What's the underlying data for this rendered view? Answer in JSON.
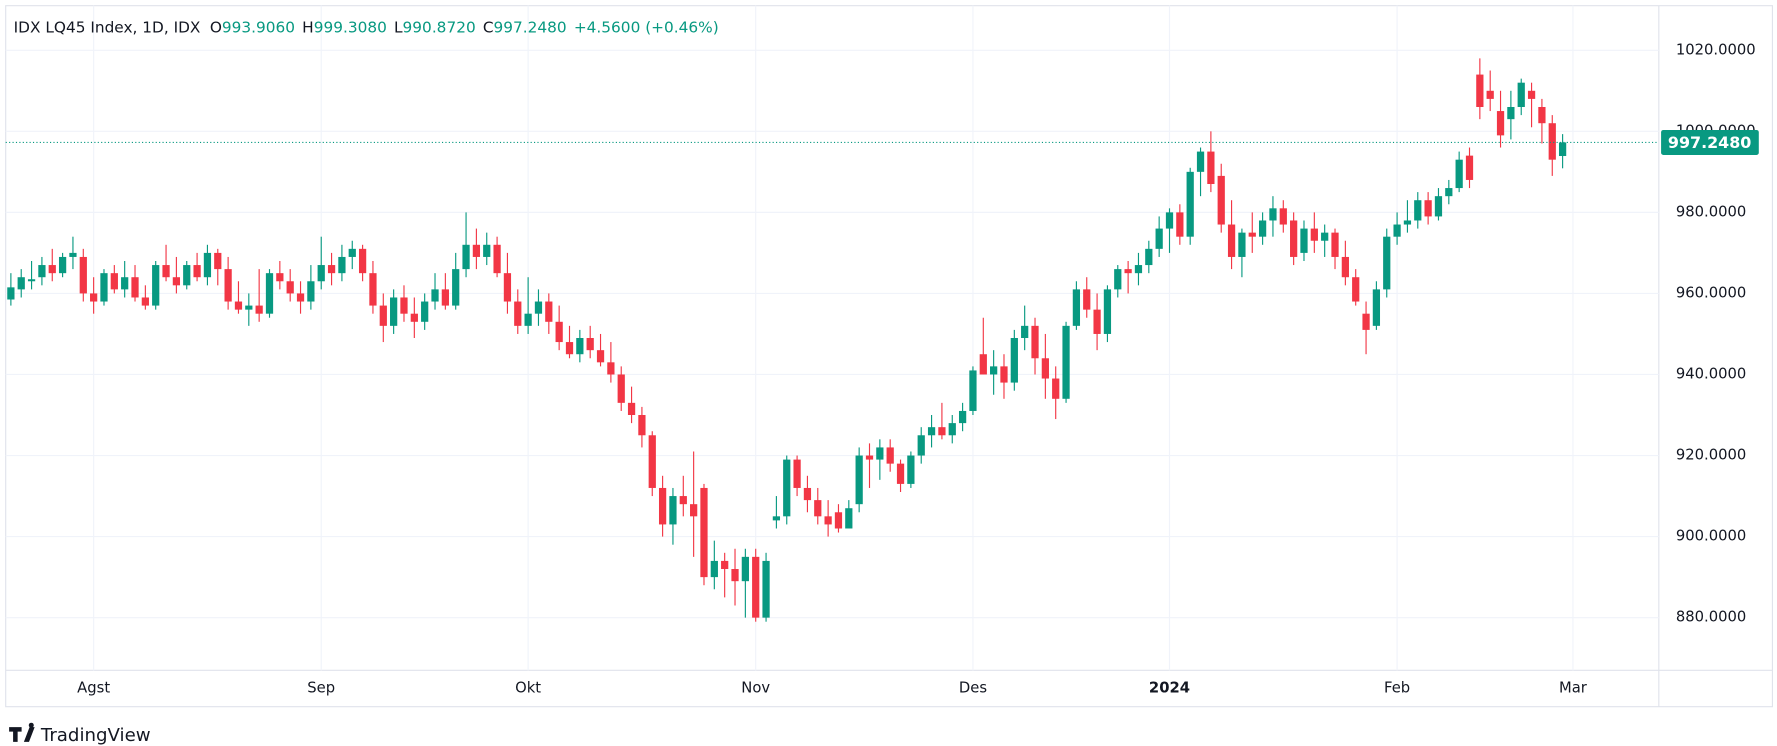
{
  "chart_data": {
    "type": "candlestick",
    "title": "IDX LQ45 Index, 1D, IDX",
    "legend": [
      {
        "label": "O",
        "value": "993.9060"
      },
      {
        "label": "H",
        "value": "999.3080"
      },
      {
        "label": "L",
        "value": "990.8720"
      },
      {
        "label": "C",
        "value": "997.2480"
      }
    ],
    "change": "+4.5600 (+0.46%)",
    "last_price_label": "997.2480",
    "up_color": "#089981",
    "down_color": "#f23645",
    "grid": true,
    "xlim": [
      -0.5,
      159.3
    ],
    "xticks": [
      {
        "value": 8,
        "label": "Agst"
      },
      {
        "value": 30,
        "label": "Sep"
      },
      {
        "value": 50,
        "label": "Okt"
      },
      {
        "value": 72,
        "label": "Nov"
      },
      {
        "value": 93,
        "label": "Des"
      },
      {
        "value": 112,
        "label": "2024"
      },
      {
        "value": 134,
        "label": "Feb"
      },
      {
        "value": 151,
        "label": "Mar"
      }
    ],
    "ylim": [
      867,
      1031
    ],
    "yticks": [
      {
        "value": 880,
        "label": "880.0000"
      },
      {
        "value": 900,
        "label": "900.0000"
      },
      {
        "value": 920,
        "label": "920.0000"
      },
      {
        "value": 940,
        "label": "940.0000"
      },
      {
        "value": 960,
        "label": "960.0000"
      },
      {
        "value": 980,
        "label": "980.0000"
      },
      {
        "value": 1000,
        "label": "1000.0000"
      },
      {
        "value": 1020,
        "label": "1020.0000"
      }
    ],
    "open": [
      958.5,
      961,
      963,
      964,
      967,
      965,
      969,
      969,
      960,
      958,
      965,
      961,
      964,
      959,
      957,
      967,
      964,
      962,
      967,
      964,
      970,
      966,
      958,
      956,
      957,
      955,
      965,
      963,
      960,
      958,
      963,
      967,
      965,
      969,
      971,
      965,
      957,
      952,
      959,
      955,
      953,
      958,
      961,
      957,
      966,
      972,
      969,
      972,
      965,
      958,
      952,
      955,
      958,
      953,
      948,
      945,
      949,
      946,
      943,
      940,
      933,
      930,
      925,
      912,
      903,
      910,
      908,
      912,
      890,
      894,
      892,
      889,
      895,
      880,
      904,
      905,
      919,
      912,
      909,
      905,
      906,
      902,
      908,
      920,
      919,
      922,
      918,
      913,
      920,
      925,
      927,
      925,
      928,
      931,
      945,
      940,
      942,
      938,
      949,
      952,
      944,
      939,
      934,
      952,
      961,
      956,
      950,
      961,
      966,
      965,
      967,
      971,
      976,
      980,
      974,
      990,
      995,
      989,
      977,
      969,
      975,
      974,
      978,
      981,
      978,
      970,
      976,
      973,
      975,
      969,
      964,
      955,
      952,
      961,
      974,
      977,
      978,
      983,
      979,
      984,
      986,
      994,
      1014,
      1010,
      1005,
      1003,
      1006,
      1010,
      1006,
      1002,
      993.906
    ],
    "high": [
      965,
      966,
      968,
      969,
      971,
      970,
      974,
      971,
      964,
      966,
      967,
      968,
      967,
      962,
      968,
      972,
      969,
      968,
      970,
      972,
      971,
      969,
      963,
      960,
      966,
      966,
      968,
      966,
      963,
      967,
      974,
      970,
      972,
      973,
      972,
      968,
      960,
      961,
      962,
      959,
      960,
      965,
      965,
      970,
      980,
      976,
      975,
      974,
      970,
      961,
      964,
      961,
      960,
      957,
      952,
      951,
      952,
      950,
      948,
      942,
      937,
      932,
      926,
      915,
      912,
      915,
      921,
      913,
      899,
      896,
      897,
      897,
      897,
      896,
      910,
      920,
      920,
      915,
      912,
      909,
      908,
      909,
      922,
      923,
      924,
      924,
      919,
      921,
      927,
      930,
      933,
      930,
      933,
      942,
      954,
      946,
      945,
      951,
      957,
      954,
      950,
      942,
      953,
      963,
      964,
      960,
      962,
      967,
      968,
      970,
      973,
      979,
      981,
      982,
      991,
      996,
      1000,
      992,
      983,
      976,
      980,
      980,
      984,
      983,
      980,
      978,
      980,
      977,
      976,
      973,
      966,
      958,
      963,
      976,
      980,
      983,
      985,
      985,
      986,
      988,
      995,
      996,
      1018,
      1015,
      1010,
      1010,
      1013,
      1012,
      1008,
      1004,
      999.308
    ],
    "low": [
      957,
      959,
      961,
      962,
      963,
      964,
      966,
      958,
      955,
      957,
      960,
      959,
      958,
      956,
      956,
      963,
      960,
      961,
      963,
      962,
      962,
      956,
      955,
      952,
      953,
      954,
      961,
      958,
      955,
      956,
      961,
      962,
      963,
      966,
      963,
      955,
      948,
      950,
      953,
      949,
      951,
      956,
      956,
      956,
      964,
      966,
      967,
      964,
      955,
      950,
      950,
      952,
      950,
      946,
      944,
      943,
      944,
      942,
      938,
      931,
      928,
      922,
      910,
      900,
      898,
      905,
      895,
      888,
      887,
      885,
      883,
      880,
      879,
      879,
      902,
      903,
      910,
      906,
      903,
      900,
      901,
      902,
      906,
      912,
      914,
      916,
      911,
      912,
      918,
      922,
      924,
      923,
      926,
      930,
      940,
      935,
      934,
      936,
      946,
      940,
      934,
      929,
      933,
      951,
      954,
      946,
      948,
      959,
      960,
      962,
      965,
      969,
      970,
      972,
      972,
      984,
      985,
      975,
      966,
      964,
      970,
      972,
      974,
      975,
      967,
      968,
      970,
      969,
      966,
      962,
      957,
      945,
      951,
      959,
      972,
      975,
      976,
      977,
      978,
      982,
      985,
      986,
      1003,
      1005,
      996,
      998,
      1004,
      1001,
      997,
      989,
      990.872
    ],
    "close": [
      961.5,
      964,
      963.5,
      967,
      965,
      969,
      970,
      960,
      958,
      965,
      961,
      964,
      959,
      957,
      967,
      964,
      962,
      967,
      964,
      970,
      966,
      958,
      956,
      957,
      955,
      965,
      963,
      960,
      958,
      963,
      967,
      965,
      969,
      971,
      965,
      957,
      952,
      959,
      955,
      953,
      958,
      961,
      957,
      966,
      972,
      969,
      972,
      965,
      958,
      952,
      955,
      958,
      953,
      948,
      945,
      949,
      946,
      943,
      940,
      933,
      930,
      925,
      912,
      903,
      910,
      908,
      905,
      890,
      894,
      892,
      889,
      895,
      880,
      894,
      905,
      919,
      912,
      909,
      905,
      903,
      902,
      907,
      920,
      919,
      922,
      918,
      913,
      920,
      925,
      927,
      925,
      928,
      931,
      941,
      940,
      942,
      938,
      949,
      952,
      944,
      939,
      934,
      952,
      961,
      956,
      950,
      961,
      966,
      965,
      967,
      971,
      976,
      980,
      974,
      990,
      995,
      987,
      977,
      969,
      975,
      974,
      978,
      981,
      977,
      969,
      976,
      973,
      975,
      969,
      964,
      958,
      951,
      961,
      974,
      977,
      978,
      983,
      979,
      984,
      986,
      993,
      988,
      1006,
      1008,
      999,
      1006,
      1012,
      1008,
      1002,
      993,
      997.248
    ]
  },
  "footer": {
    "brand": "TradingView"
  }
}
